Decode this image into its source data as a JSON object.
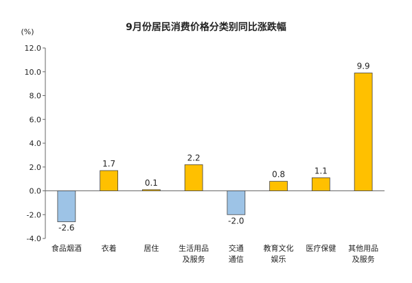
{
  "chart_data": {
    "type": "bar",
    "title": "9月份居民消费价格分类别同比涨跌幅",
    "ylabel": "(%)",
    "xlabel": "",
    "ylim": [
      -4.0,
      12.0
    ],
    "yticks": [
      "12.0",
      "10.0",
      "8.0",
      "6.0",
      "4.0",
      "2.0",
      "0.0",
      "-2.0",
      "-4.0"
    ],
    "ytick_values": [
      12,
      10,
      8,
      6,
      4,
      2,
      0,
      -2,
      -4
    ],
    "categories": [
      [
        "食品烟酒"
      ],
      [
        "衣着"
      ],
      [
        "居住"
      ],
      [
        "生活用品",
        "及服务"
      ],
      [
        "交通",
        "通信"
      ],
      [
        "教育文化",
        "娱乐"
      ],
      [
        "医疗保健"
      ],
      [
        "其他用品",
        "及服务"
      ]
    ],
    "values": [
      -2.6,
      1.7,
      0.1,
      2.2,
      -2.0,
      0.8,
      1.1,
      9.9
    ],
    "value_labels": [
      "-2.6",
      "1.7",
      "0.1",
      "2.2",
      "-2.0",
      "0.8",
      "1.1",
      "9.9"
    ],
    "colors": {
      "positive": "#FFC000",
      "negative": "#9DC3E6"
    },
    "grid": false,
    "legend": "none"
  }
}
